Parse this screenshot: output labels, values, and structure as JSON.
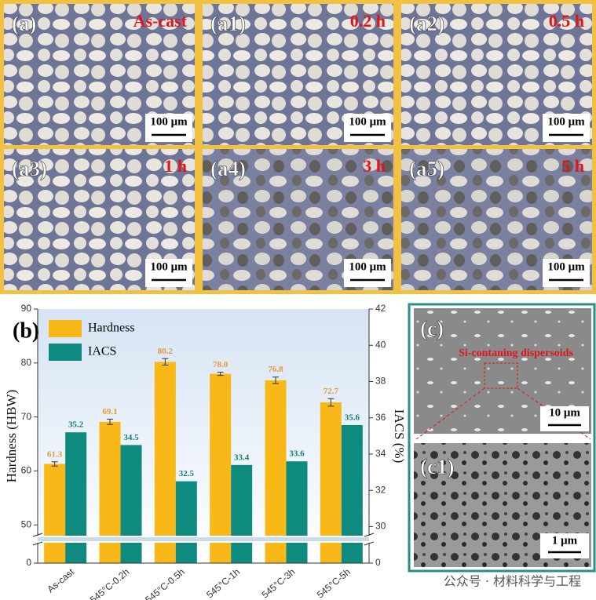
{
  "panels": [
    {
      "label": "(a)",
      "condition": "As-cast",
      "scale": "100 μm"
    },
    {
      "label": "(a1)",
      "condition": "0.2 h",
      "scale": "100 μm"
    },
    {
      "label": "(a2)",
      "condition": "0.5 h",
      "scale": "100 μm"
    },
    {
      "label": "(a3)",
      "condition": "1 h",
      "scale": "100 μm"
    },
    {
      "label": "(a4)",
      "condition": "3 h",
      "scale": "100 μm"
    },
    {
      "label": "(a5)",
      "condition": "5 h",
      "scale": "100 μm"
    }
  ],
  "chart_data": {
    "type": "bar",
    "panel_label": "(b)",
    "categories": [
      "As-cast",
      "545°C-0.2h",
      "545°C-0.5h",
      "545°C-1h",
      "545°C-3h",
      "545°C-5h"
    ],
    "series": [
      {
        "name": "Hardness",
        "color": "#f8b817",
        "label_color": "#e39a35",
        "axis": "y",
        "values": [
          61.3,
          69.1,
          80.2,
          78.0,
          76.8,
          72.7
        ],
        "value_labels": [
          "61.3",
          "69.1",
          "80.2",
          "78.0",
          "76.8",
          "72.7"
        ],
        "errors": [
          0.4,
          0.5,
          0.6,
          0.3,
          0.6,
          0.7
        ]
      },
      {
        "name": "IACS",
        "color": "#0f8a7e",
        "label_color": "#0f7f74",
        "axis": "y2",
        "values": [
          35.2,
          34.5,
          32.5,
          33.4,
          33.6,
          35.6
        ]
      }
    ],
    "ylabel": "Hardness (HBW)",
    "y2label": "IACS (%)",
    "ylim": [
      0,
      90
    ],
    "yticks": [
      0,
      50,
      60,
      70,
      80,
      90
    ],
    "ybreak": [
      5,
      48
    ],
    "y2lim": [
      0,
      42
    ],
    "y2ticks": [
      0,
      30,
      32,
      34,
      36,
      38,
      40,
      42
    ],
    "y2break": [
      2,
      29.5
    ],
    "legend": "upper left"
  },
  "sem": {
    "c": {
      "label": "(c)",
      "annotation": "Si-contaning dispersoids",
      "scale": "10 μm"
    },
    "c1": {
      "label": "(c1)",
      "scale": "1 μm"
    }
  },
  "watermark": "公众号 · 材料科学与工程"
}
